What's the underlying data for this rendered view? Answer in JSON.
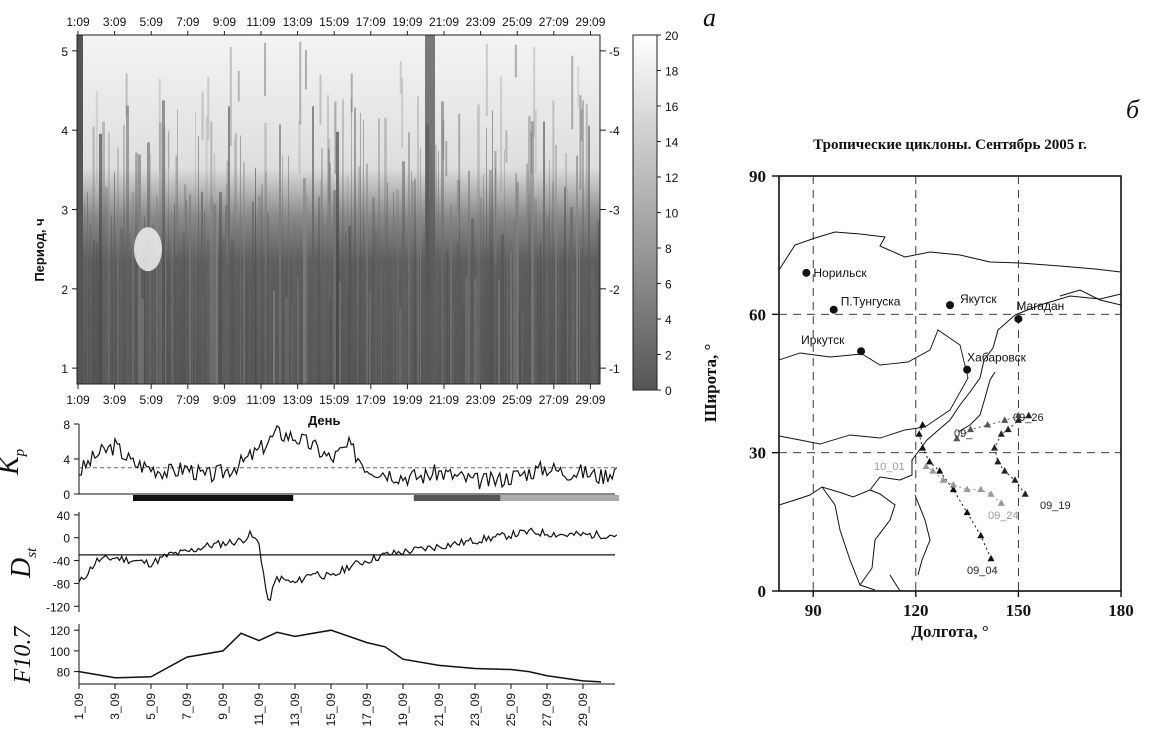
{
  "panel_labels": {
    "a": "а",
    "b": "б"
  },
  "chart_data": [
    {
      "type": "heatmap",
      "xlabel": "День",
      "ylabel": "Период, ч",
      "x_ticks_top": [
        "1:09",
        "3:09",
        "5:09",
        "7:09",
        "9:09",
        "11:09",
        "13:09",
        "15:09",
        "17:09",
        "19:09",
        "21:09",
        "23:09",
        "25:09",
        "27:09",
        "29:09"
      ],
      "x_ticks_bottom": [
        "1:09",
        "3:09",
        "5:09",
        "7:09",
        "9:09",
        "11:09",
        "13:09",
        "15:09",
        "17:09",
        "19:09",
        "21:09",
        "23:09",
        "25:09",
        "27:09",
        "29:09"
      ],
      "y_ticks": [
        "1",
        "2",
        "3",
        "4",
        "5"
      ],
      "ylim": [
        0.8,
        5.2
      ],
      "colorbar": {
        "ticks": [
          "0",
          "2",
          "4",
          "6",
          "8",
          "10",
          "12",
          "14",
          "16",
          "18",
          "20"
        ],
        "range": [
          0,
          20
        ],
        "colors": [
          "#555555",
          "#ffffff"
        ]
      }
    },
    {
      "type": "line",
      "ylabel_main": "K",
      "ylabel_sub": "p",
      "y_ticks": [
        "0",
        "4",
        "8"
      ],
      "ylim": [
        0,
        8
      ],
      "reference_line": 3,
      "x": [
        1,
        2,
        3,
        4,
        5,
        6,
        7,
        8,
        9,
        10,
        11,
        12,
        13,
        14,
        15,
        16,
        17,
        18,
        19,
        20,
        21,
        22,
        23,
        24,
        25,
        26,
        27,
        28,
        29,
        30,
        31
      ],
      "values": [
        2.5,
        4.5,
        5.5,
        3.5,
        3.0,
        2.5,
        3.0,
        2.0,
        2.5,
        3.5,
        5.0,
        7.0,
        6.5,
        5.5,
        4.0,
        5.5,
        3.0,
        2.5,
        2.0,
        2.0,
        2.5,
        2.0,
        1.5,
        1.5,
        2.0,
        2.5,
        3.0,
        2.5,
        2.5,
        2.0,
        3.0
      ],
      "bars": [
        {
          "start": 4.0,
          "end": 12.9,
          "color": "#111111"
        },
        {
          "start": 19.6,
          "end": 26.0,
          "color": "#555555"
        },
        {
          "start": 24.4,
          "end": 31.0,
          "color": "#aaaaaa"
        }
      ]
    },
    {
      "type": "line",
      "ylabel_main": "D",
      "ylabel_sub": "st",
      "y_ticks": [
        "40",
        "0",
        "-40",
        "-80",
        "-120"
      ],
      "ylim": [
        -130,
        45
      ],
      "reference_line": -30,
      "x": [
        1,
        2,
        3,
        4,
        5,
        6,
        7,
        8,
        9,
        10,
        10.5,
        11,
        11.5,
        12,
        13,
        14,
        15,
        16,
        17,
        18,
        19,
        20,
        21,
        22,
        23,
        24,
        25,
        26,
        27,
        28,
        29,
        30,
        31
      ],
      "values": [
        -80,
        -40,
        -35,
        -40,
        -45,
        -30,
        -25,
        -15,
        -10,
        -5,
        5,
        -10,
        -115,
        -70,
        -80,
        -60,
        -70,
        -50,
        -40,
        -30,
        -25,
        -20,
        -15,
        -10,
        -5,
        0,
        5,
        10,
        8,
        5,
        5,
        5,
        5
      ]
    },
    {
      "type": "line",
      "ylabel": "F10.7",
      "y_ticks": [
        "80",
        "100",
        "120"
      ],
      "ylim": [
        68,
        126
      ],
      "x": [
        1,
        3,
        5,
        7,
        9,
        10,
        11,
        12,
        13,
        15,
        17,
        18,
        19,
        21,
        23,
        25,
        26,
        27,
        29,
        30
      ],
      "values": [
        80,
        74,
        75,
        94,
        100,
        117,
        110,
        118,
        114,
        120,
        108,
        104,
        92,
        86,
        83,
        82,
        80,
        76,
        71,
        70
      ],
      "x_ticks": [
        "1_09",
        "3_09",
        "5_09",
        "7_09",
        "9_09",
        "11_09",
        "13_09",
        "15_09",
        "17_09",
        "19_09",
        "21_09",
        "23_09",
        "25_09",
        "27_09",
        "29_09"
      ]
    }
  ],
  "map": {
    "title": "Тропические циклоны. Сентябрь 2005 г.",
    "xlabel": "Долгота, °",
    "ylabel": "Широта, °",
    "x_ticks": [
      "90",
      "120",
      "150",
      "180"
    ],
    "y_ticks": [
      "0",
      "30",
      "60",
      "90"
    ],
    "xlim": [
      80,
      180
    ],
    "ylim": [
      0,
      90
    ],
    "cities": [
      {
        "name": "Норильск",
        "lon": 88,
        "lat": 69
      },
      {
        "name": "П.Тунгуска",
        "lon": 96,
        "lat": 61
      },
      {
        "name": "Якутск",
        "lon": 130,
        "lat": 62
      },
      {
        "name": "Магадан",
        "lon": 150,
        "lat": 59
      },
      {
        "name": "Иркутск",
        "lon": 104,
        "lat": 52
      },
      {
        "name": "Хабаровск",
        "lon": 135,
        "lat": 48
      }
    ],
    "tracks": [
      {
        "label": "09_04",
        "color": "#111111",
        "points": [
          [
            142,
            7
          ],
          [
            139,
            12
          ],
          [
            135,
            17
          ],
          [
            131,
            22
          ],
          [
            127,
            26
          ],
          [
            124,
            28
          ],
          [
            122,
            31
          ],
          [
            121,
            34
          ],
          [
            122,
            36
          ]
        ]
      },
      {
        "label": "09_19",
        "color": "#222222",
        "points": [
          [
            152,
            21
          ],
          [
            149,
            24
          ],
          [
            146,
            26
          ],
          [
            144,
            28
          ],
          [
            143,
            31
          ],
          [
            145,
            34
          ],
          [
            147,
            35
          ],
          [
            150,
            37
          ],
          [
            153,
            38
          ]
        ]
      },
      {
        "label": "09_24",
        "color": "#999999",
        "points": [
          [
            145,
            19
          ],
          [
            142,
            21
          ],
          [
            139,
            22
          ],
          [
            135,
            22
          ],
          [
            131,
            23
          ],
          [
            128,
            24
          ],
          [
            125,
            26
          ],
          [
            123,
            27
          ]
        ]
      },
      {
        "label": "10_01",
        "color": "#999999",
        "points": []
      },
      {
        "label": "09_26",
        "color": "#555555",
        "points": [
          [
            132,
            33
          ],
          [
            136,
            35
          ],
          [
            141,
            36
          ],
          [
            146,
            37
          ],
          [
            150,
            38
          ]
        ]
      },
      {
        "label": "09_",
        "color": "#555555",
        "points": []
      }
    ]
  }
}
